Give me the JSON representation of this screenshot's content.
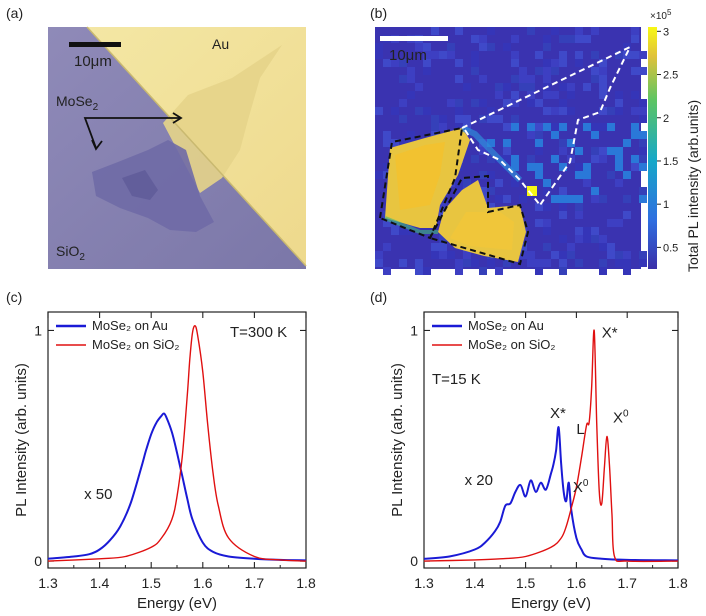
{
  "panel_a": {
    "label": "(a)",
    "scalebar": "10μm",
    "au": "Au",
    "mose2": "MoSe",
    "mose2_sub": "2",
    "sio2": "SiO",
    "sio2_sub": "2"
  },
  "panel_b": {
    "label": "(b)",
    "scalebar": "10μm",
    "colorbar_multiplier": "×10",
    "colorbar_exp": "5",
    "colorbar_ticks": [
      "3",
      "2.5",
      "2",
      "1.5",
      "1",
      "0.5"
    ],
    "colorbar_tick_values": [
      3,
      2.5,
      2,
      1.5,
      1,
      0.5
    ],
    "colorbar_range": [
      0.25,
      3.05
    ],
    "colorbar_title": "Total PL intensity (arb.units)"
  },
  "colors": {
    "blue": "#1a1ad6",
    "red": "#e01010",
    "au": "#f2e29a",
    "sio2": "#8a84b4"
  },
  "chart_data": [
    {
      "panel": "(c)",
      "type": "line",
      "title": "",
      "xlabel": "Energy (eV)",
      "ylabel": "PL Intensity (arb. units)",
      "xlim": [
        1.3,
        1.8
      ],
      "ylim": [
        -0.03,
        1.08
      ],
      "xticks": [
        "1.3",
        "1.4",
        "1.5",
        "1.6",
        "1.7",
        "1.8"
      ],
      "xtick_values": [
        1.3,
        1.4,
        1.5,
        1.6,
        1.7,
        1.8
      ],
      "yticks": [
        "0",
        "1"
      ],
      "ytick_values": [
        0,
        1
      ],
      "legend": [
        "MoSe₂ on Au",
        "MoSe₂ on SiO₂"
      ],
      "legend_position": "top-left",
      "annotations": {
        "temperature": "T=300 K",
        "scale": "x 50"
      },
      "series": [
        {
          "name": "MoSe₂ on Au",
          "color": "#1a1ad6",
          "x": [
            1.3,
            1.35,
            1.38,
            1.4,
            1.42,
            1.44,
            1.46,
            1.48,
            1.49,
            1.5,
            1.51,
            1.52,
            1.525,
            1.53,
            1.54,
            1.55,
            1.56,
            1.57,
            1.58,
            1.6,
            1.62,
            1.65,
            1.7,
            1.75,
            1.8
          ],
          "y": [
            0.01,
            0.02,
            0.03,
            0.05,
            0.09,
            0.15,
            0.25,
            0.4,
            0.48,
            0.55,
            0.6,
            0.63,
            0.64,
            0.62,
            0.56,
            0.47,
            0.37,
            0.27,
            0.18,
            0.08,
            0.04,
            0.02,
            0.01,
            0.005,
            0.003
          ]
        },
        {
          "name": "MoSe₂ on SiO₂",
          "color": "#e01010",
          "x": [
            1.3,
            1.4,
            1.45,
            1.5,
            1.52,
            1.54,
            1.55,
            1.56,
            1.57,
            1.575,
            1.58,
            1.585,
            1.59,
            1.6,
            1.61,
            1.62,
            1.63,
            1.65,
            1.7,
            1.75,
            1.8
          ],
          "y": [
            0.0,
            0.01,
            0.02,
            0.06,
            0.1,
            0.18,
            0.28,
            0.45,
            0.72,
            0.88,
            0.99,
            1.02,
            0.98,
            0.82,
            0.58,
            0.38,
            0.24,
            0.1,
            0.02,
            0.005,
            0.0
          ]
        }
      ]
    },
    {
      "panel": "(d)",
      "type": "line",
      "title": "",
      "xlabel": "Energy (eV)",
      "ylabel": "PL Intensity (arb. units)",
      "xlim": [
        1.3,
        1.8
      ],
      "ylim": [
        -0.03,
        1.08
      ],
      "xticks": [
        "1.3",
        "1.4",
        "1.5",
        "1.6",
        "1.7",
        "1.8"
      ],
      "xtick_values": [
        1.3,
        1.4,
        1.5,
        1.6,
        1.7,
        1.8
      ],
      "yticks": [
        "0",
        "1"
      ],
      "ytick_values": [
        0,
        1
      ],
      "legend": [
        "MoSe₂ on Au",
        "MoSe₂ on SiO₂"
      ],
      "legend_position": "top-left",
      "annotations": {
        "temperature": "T=15 K",
        "scale": "x 20",
        "blue_xstar": "X*",
        "blue_x0": "X",
        "red_xstar": "X*",
        "red_l": "L",
        "red_x0": "X"
      },
      "series": [
        {
          "name": "MoSe₂ on Au",
          "color": "#1a1ad6",
          "x": [
            1.3,
            1.35,
            1.4,
            1.42,
            1.44,
            1.45,
            1.46,
            1.47,
            1.48,
            1.49,
            1.5,
            1.51,
            1.52,
            1.53,
            1.54,
            1.55,
            1.555,
            1.56,
            1.565,
            1.57,
            1.575,
            1.58,
            1.585,
            1.59,
            1.6,
            1.61,
            1.62,
            1.65,
            1.7,
            1.8
          ],
          "y": [
            0.01,
            0.02,
            0.05,
            0.08,
            0.13,
            0.17,
            0.24,
            0.25,
            0.3,
            0.33,
            0.28,
            0.35,
            0.3,
            0.34,
            0.31,
            0.38,
            0.42,
            0.48,
            0.58,
            0.42,
            0.3,
            0.26,
            0.34,
            0.22,
            0.1,
            0.05,
            0.02,
            0.01,
            0.005,
            0.003
          ]
        },
        {
          "name": "MoSe₂ on SiO₂",
          "color": "#e01010",
          "x": [
            1.3,
            1.4,
            1.45,
            1.5,
            1.55,
            1.57,
            1.58,
            1.59,
            1.6,
            1.61,
            1.62,
            1.625,
            1.63,
            1.635,
            1.64,
            1.645,
            1.65,
            1.655,
            1.66,
            1.665,
            1.67,
            1.675,
            1.7,
            1.8
          ],
          "y": [
            0.0,
            0.005,
            0.01,
            0.02,
            0.06,
            0.1,
            0.15,
            0.23,
            0.32,
            0.45,
            0.59,
            0.6,
            0.75,
            1.0,
            0.6,
            0.3,
            0.25,
            0.4,
            0.54,
            0.42,
            0.2,
            0.02,
            0.0,
            0.0
          ]
        }
      ]
    }
  ]
}
